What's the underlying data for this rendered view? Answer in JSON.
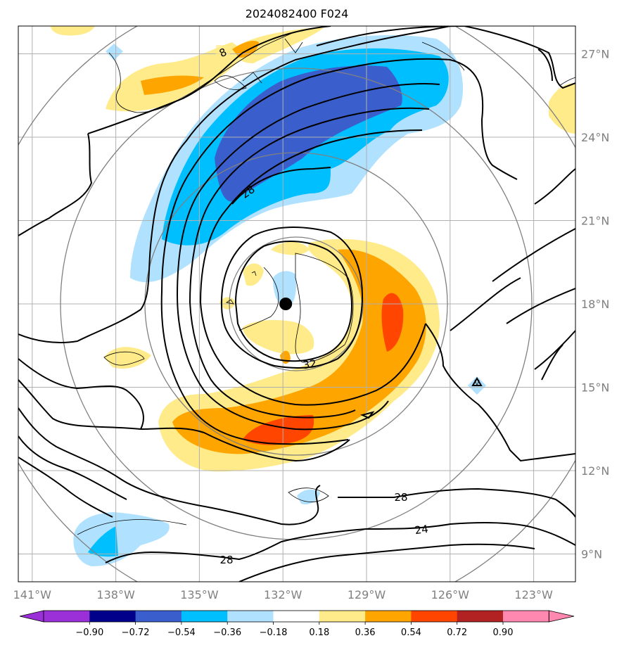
{
  "title": "2024082400 F024",
  "map": {
    "lon_labels": [
      "141°W",
      "138°W",
      "135°W",
      "132°W",
      "129°W",
      "126°W",
      "123°W"
    ],
    "lon_values": [
      -141,
      -138,
      -135,
      -132,
      -129,
      -126,
      -123
    ],
    "lat_labels": [
      "27°N",
      "24°N",
      "21°N",
      "18°N",
      "15°N",
      "12°N",
      "9°N"
    ],
    "lat_values": [
      27,
      24,
      21,
      18,
      15,
      12,
      9
    ],
    "extent": {
      "lon_min": -141.5,
      "lon_max": -121.5,
      "lat_min": 8,
      "lat_max": 28
    },
    "storm_center": {
      "lon": -131.9,
      "lat": 18.0
    },
    "contour_labels": [
      "8",
      "28",
      "32",
      "28",
      "24",
      "28"
    ],
    "contour_line_color": "#000000",
    "range_ring_color": "#808080",
    "grid_color": "#b0b0b0"
  },
  "colorbar": {
    "tick_labels": [
      "−0.90",
      "−0.72",
      "−0.54",
      "−0.36",
      "−0.18",
      "0.18",
      "0.36",
      "0.54",
      "0.72",
      "0.90"
    ],
    "colors": [
      "#9b30d9",
      "#00008b",
      "#3a5fcd",
      "#00bfff",
      "#b0e2ff",
      "#ffffff",
      "#ffeb8a",
      "#ffa500",
      "#ff4500",
      "#b22222",
      "#ff88b0",
      "#ff88b0"
    ]
  }
}
